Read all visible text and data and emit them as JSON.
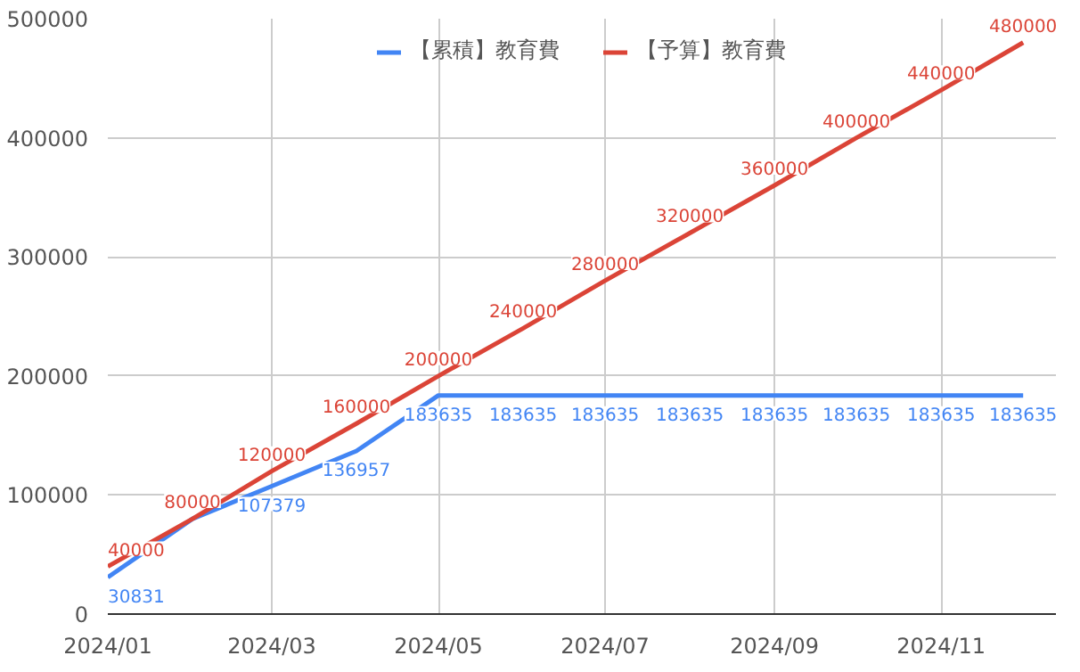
{
  "chart_data": {
    "type": "line",
    "x": [
      "2024-01-01",
      "2024-02-01",
      "2024-03-01",
      "2024-04-01",
      "2024-05-01",
      "2024-06-01",
      "2024-07-01",
      "2024-08-01",
      "2024-09-01",
      "2024-10-01",
      "2024-11-01",
      "2024-12-01"
    ],
    "series": [
      {
        "name": "【累積】教育費",
        "color": "#4285f4",
        "values": [
          30831,
          80000,
          107379,
          136957,
          183635,
          183635,
          183635,
          183635,
          183635,
          183635,
          183635,
          183635
        ],
        "value_labels": [
          "30831",
          null,
          "107379",
          "136957",
          "183635",
          "183635",
          "183635",
          "183635",
          "183635",
          "183635",
          "183635",
          "183635"
        ]
      },
      {
        "name": "【予算】教育費",
        "color": "#db4437",
        "values": [
          40000,
          80000,
          120000,
          160000,
          200000,
          240000,
          280000,
          320000,
          360000,
          400000,
          440000,
          480000
        ],
        "value_labels": [
          "40000",
          "80000",
          "120000",
          "160000",
          "200000",
          "240000",
          "280000",
          "320000",
          "360000",
          "400000",
          "440000",
          "480000"
        ]
      }
    ],
    "xlim": [
      "2024-01-01",
      "2024-12-13"
    ],
    "xticks": [
      {
        "value": "2024-01-01",
        "label": "2024/01"
      },
      {
        "value": "2024-03-01",
        "label": "2024/03"
      },
      {
        "value": "2024-05-01",
        "label": "2024/05"
      },
      {
        "value": "2024-07-01",
        "label": "2024/07"
      },
      {
        "value": "2024-09-01",
        "label": "2024/09"
      },
      {
        "value": "2024-11-01",
        "label": "2024/11"
      }
    ],
    "ylim": [
      0,
      500000
    ],
    "yticks": [
      0,
      100000,
      200000,
      300000,
      400000,
      500000
    ],
    "grid": true,
    "legend": "top",
    "marker": "none",
    "line_style": "solid"
  }
}
